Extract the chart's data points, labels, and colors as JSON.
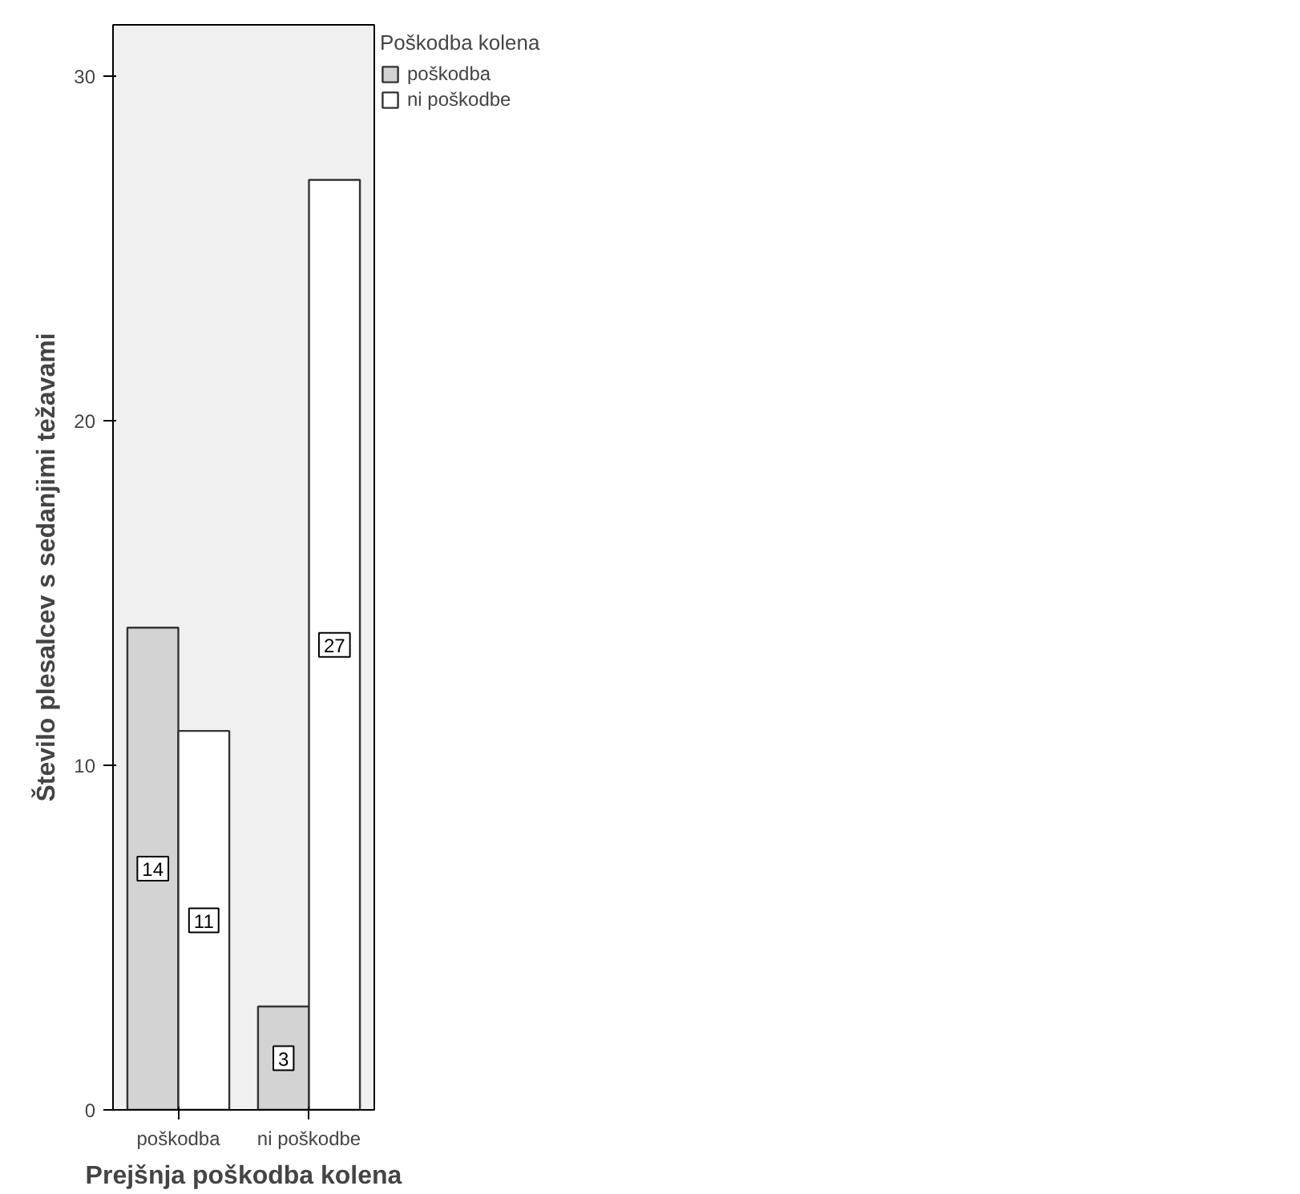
{
  "chart_data": {
    "type": "bar",
    "xlabel": "Prejšnja poškodba kolena",
    "ylabel": "Število plesalcev s sedanjimi težavami",
    "legend_title": "Poškodba kolena",
    "categories": [
      "poškodba",
      "ni poškodbe"
    ],
    "series": [
      {
        "name": "poškodba",
        "color": "#d3d3d3",
        "values": [
          14,
          3
        ]
      },
      {
        "name": "ni poškodbe",
        "color": "#ffffff",
        "values": [
          11,
          27
        ]
      }
    ],
    "ylim": [
      0,
      31.5
    ],
    "yticks": [
      0,
      10,
      20,
      30
    ],
    "grid": false,
    "legend": "top right",
    "data_labels": true
  }
}
